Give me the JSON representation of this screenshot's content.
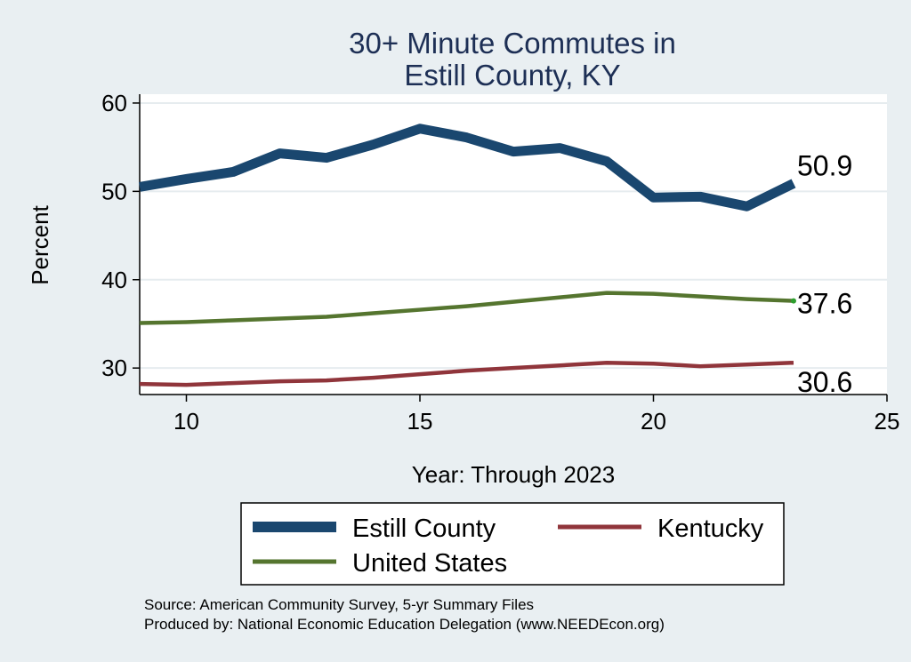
{
  "chart_data": {
    "type": "line",
    "title": [
      "30+ Minute Commutes in",
      "Estill County, KY"
    ],
    "xlabel": "Year: Through 2023",
    "ylabel": "Percent",
    "xlim": [
      9,
      25
    ],
    "ylim": [
      27,
      61
    ],
    "xticks": [
      10,
      15,
      20,
      25
    ],
    "yticks": [
      30,
      40,
      50,
      60
    ],
    "grid": true,
    "x": [
      9,
      10,
      11,
      12,
      13,
      14,
      15,
      16,
      17,
      18,
      19,
      20,
      21,
      22,
      23
    ],
    "series": [
      {
        "name": "Estill County",
        "color": "#1a476f",
        "values": [
          50.5,
          51.4,
          52.2,
          54.3,
          53.8,
          55.3,
          57.1,
          56.1,
          54.5,
          54.9,
          53.4,
          49.3,
          49.4,
          48.3,
          50.9
        ],
        "end_label": "50.9"
      },
      {
        "name": "United States",
        "color": "#55752f",
        "values": [
          35.1,
          35.2,
          35.4,
          35.6,
          35.8,
          36.2,
          36.6,
          37.0,
          37.5,
          38.0,
          38.5,
          38.4,
          38.1,
          37.8,
          37.6
        ],
        "end_label": "37.6"
      },
      {
        "name": "Kentucky",
        "color": "#90353b",
        "values": [
          28.2,
          28.1,
          28.3,
          28.5,
          28.6,
          28.9,
          29.3,
          29.7,
          30.0,
          30.3,
          30.6,
          30.5,
          30.2,
          30.4,
          30.6
        ],
        "end_label": "30.6"
      }
    ],
    "legend": {
      "position": "bottom",
      "items": [
        "Estill County",
        "Kentucky",
        "United States"
      ]
    },
    "source_lines": [
      "Source: American Community Survey, 5-yr Summary Files",
      "Produced by: National Economic Education Delegation (www.NEEDEcon.org)"
    ]
  }
}
